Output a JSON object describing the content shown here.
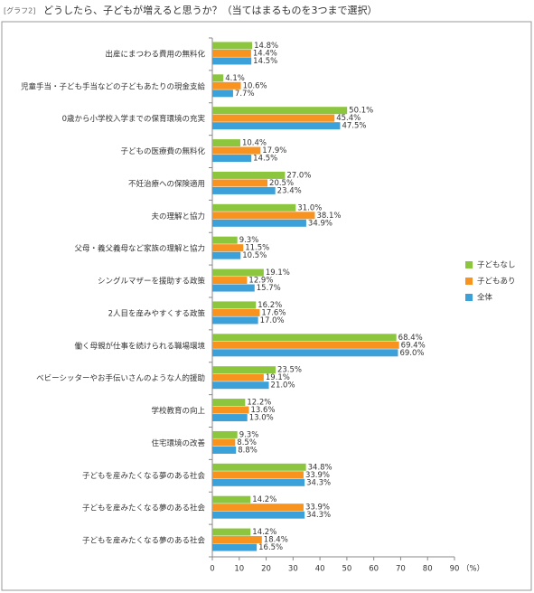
{
  "chart_data": {
    "type": "hbar",
    "figure_label": "[グラフ2]",
    "title": "どうしたら、子どもが増えると思うか？（当てはまるものを3つまで選択）",
    "x_unit": "（%）",
    "categories": [
      "出産にまつわる費用の無料化",
      "児童手当・子ども手当などの子どもあたりの現金支給",
      "0歳から小学校入学までの保育環境の充実",
      "子どもの医療費の無料化",
      "不妊治療への保険適用",
      "夫の理解と協力",
      "父母・義父義母など家族の理解と協力",
      "シングルマザーを援助する政策",
      "2人目を産みやすくする政策",
      "働く母親が仕事を続けられる職場環境",
      "ベビーシッターやお手伝いさんのような人的援助",
      "学校教育の向上",
      "住宅環境の改善",
      "子どもを産みたくなる夢のある社会",
      "子どもを産みたくなる夢のある社会",
      "子どもを産みたくなる夢のある社会"
    ],
    "series": [
      {
        "name": "子どもなし",
        "color": "#8cc63e",
        "values": [
          14.8,
          4.1,
          50.1,
          10.4,
          27.0,
          31.0,
          9.3,
          19.1,
          16.2,
          68.4,
          23.5,
          12.2,
          9.3,
          34.8,
          14.2,
          14.2
        ],
        "value_labels": [
          "14.8%",
          "4.1%",
          "50.1%",
          "10.4%",
          "27.0%",
          "31.0%",
          "9.3%",
          "19.1%",
          "16.2%",
          "68.4%",
          "23.5%",
          "12.2%",
          "9.3%",
          "34.8%",
          "14.2%",
          "14.2%"
        ]
      },
      {
        "name": "子どもあり",
        "color": "#f7931e",
        "values": [
          14.4,
          10.6,
          45.4,
          17.9,
          20.5,
          38.1,
          11.5,
          12.9,
          17.6,
          69.4,
          19.1,
          13.6,
          8.5,
          33.9,
          33.9,
          18.4
        ],
        "value_labels": [
          "14.4%",
          "10.6%",
          "45.4%",
          "17.9%",
          "20.5%",
          "38.1%",
          "11.5%",
          "12.9%",
          "17.6%",
          "69.4%",
          "19.1%",
          "13.6%",
          "8.5%",
          "33.9%",
          "33.9%",
          "18.4%"
        ]
      },
      {
        "name": "全体",
        "color": "#3ca0d9",
        "values": [
          14.5,
          7.7,
          47.5,
          14.5,
          23.4,
          34.9,
          10.5,
          15.7,
          17.0,
          69.0,
          21.0,
          13.0,
          8.8,
          34.3,
          34.3,
          16.5
        ],
        "value_labels": [
          "14.5%",
          "7.7%",
          "47.5%",
          "14.5%",
          "23.4%",
          "34.9%",
          "10.5%",
          "15.7%",
          "17.0%",
          "69.0%",
          "21.0%",
          "13.0%",
          "8.8%",
          "34.3%",
          "34.3%",
          "16.5%"
        ]
      }
    ],
    "xlim": [
      0,
      90
    ],
    "xticks": [
      0,
      10,
      20,
      30,
      40,
      50,
      60,
      70,
      80,
      90
    ],
    "legend": "right"
  }
}
